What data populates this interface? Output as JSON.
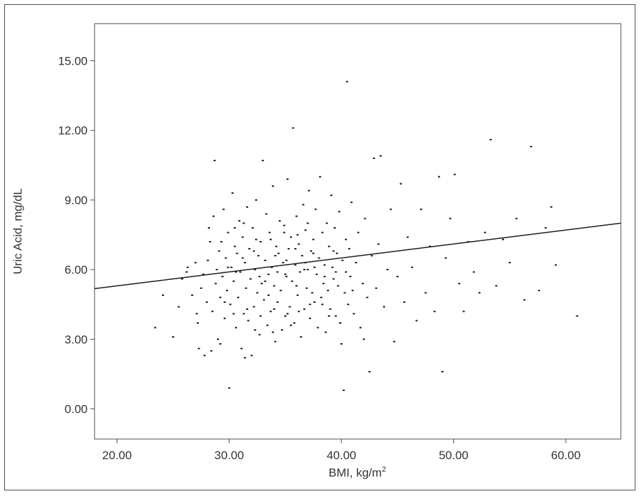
{
  "chart_data": {
    "type": "scatter",
    "title": "",
    "xlabel": "BMI, kg/m",
    "xlabel_superscript": "2",
    "ylabel": "Uric Acid, mg/dL",
    "xlim": [
      18.0,
      64.9
    ],
    "ylim": [
      -1.3,
      16.6
    ],
    "x_ticks": [
      "20.00",
      "30.00",
      "40.00",
      "50.00",
      "60.00"
    ],
    "x_tick_values": [
      20,
      30,
      40,
      50,
      60
    ],
    "y_ticks": [
      "0.00",
      "3.00",
      "6.00",
      "9.00",
      "12.00",
      "15.00"
    ],
    "y_tick_values": [
      0,
      3,
      6,
      9,
      12,
      15
    ],
    "grid": false,
    "legend": "none",
    "point_color": "#1a1a1a",
    "line_color": "#1a1a1a",
    "fit_line": {
      "x": [
        18.0,
        64.9
      ],
      "y": [
        5.18,
        8.0
      ]
    },
    "series": [
      {
        "points": [
          [
            24.1,
            4.9
          ],
          [
            25.5,
            4.4
          ],
          [
            25.8,
            5.6
          ],
          [
            26.2,
            5.9
          ],
          [
            26.7,
            4.9
          ],
          [
            27.0,
            6.3
          ],
          [
            27.2,
            3.7
          ],
          [
            27.3,
            2.6
          ],
          [
            27.5,
            5.2
          ],
          [
            27.7,
            5.8
          ],
          [
            27.8,
            2.3
          ],
          [
            28.0,
            4.6
          ],
          [
            28.1,
            6.4
          ],
          [
            28.2,
            7.8
          ],
          [
            28.4,
            2.5
          ],
          [
            28.5,
            4.2
          ],
          [
            28.6,
            8.3
          ],
          [
            28.7,
            10.7
          ],
          [
            28.8,
            5.4
          ],
          [
            28.9,
            6.0
          ],
          [
            29.0,
            3.0
          ],
          [
            29.1,
            6.8
          ],
          [
            29.2,
            4.8
          ],
          [
            29.3,
            7.2
          ],
          [
            29.4,
            5.7
          ],
          [
            29.5,
            8.6
          ],
          [
            29.6,
            3.9
          ],
          [
            29.7,
            6.5
          ],
          [
            29.8,
            5.1
          ],
          [
            29.9,
            7.6
          ],
          [
            30.0,
            0.9
          ],
          [
            30.1,
            4.5
          ],
          [
            30.2,
            6.1
          ],
          [
            30.3,
            9.3
          ],
          [
            30.4,
            5.5
          ],
          [
            30.5,
            7.0
          ],
          [
            30.6,
            3.5
          ],
          [
            30.7,
            6.7
          ],
          [
            30.8,
            4.8
          ],
          [
            30.9,
            8.1
          ],
          [
            31.0,
            5.9
          ],
          [
            31.1,
            2.6
          ],
          [
            31.2,
            7.4
          ],
          [
            31.3,
            4.1
          ],
          [
            31.4,
            6.3
          ],
          [
            31.5,
            5.2
          ],
          [
            31.6,
            8.7
          ],
          [
            31.7,
            3.8
          ],
          [
            31.8,
            6.9
          ],
          [
            31.9,
            5.6
          ],
          [
            32.0,
            2.3
          ],
          [
            32.1,
            7.8
          ],
          [
            32.2,
            4.4
          ],
          [
            32.3,
            6.0
          ],
          [
            32.4,
            9.0
          ],
          [
            32.5,
            5.0
          ],
          [
            32.6,
            6.6
          ],
          [
            32.7,
            3.2
          ],
          [
            32.8,
            7.2
          ],
          [
            32.9,
            5.4
          ],
          [
            33.0,
            10.7
          ],
          [
            33.1,
            4.7
          ],
          [
            33.2,
            6.4
          ],
          [
            33.3,
            8.4
          ],
          [
            33.4,
            3.6
          ],
          [
            33.5,
            5.8
          ],
          [
            33.6,
            7.6
          ],
          [
            33.7,
            4.2
          ],
          [
            33.8,
            6.1
          ],
          [
            33.9,
            9.6
          ],
          [
            34.0,
            5.3
          ],
          [
            34.1,
            2.9
          ],
          [
            34.2,
            7.0
          ],
          [
            34.3,
            4.6
          ],
          [
            34.4,
            6.7
          ],
          [
            34.5,
            8.1
          ],
          [
            34.6,
            5.1
          ],
          [
            34.7,
            3.4
          ],
          [
            34.8,
            6.3
          ],
          [
            34.9,
            7.9
          ],
          [
            35.0,
            4.0
          ],
          [
            35.1,
            5.7
          ],
          [
            35.2,
            9.9
          ],
          [
            35.3,
            6.9
          ],
          [
            35.4,
            4.4
          ],
          [
            35.5,
            7.4
          ],
          [
            35.6,
            5.5
          ],
          [
            35.7,
            12.1
          ],
          [
            35.8,
            3.7
          ],
          [
            35.9,
            6.2
          ],
          [
            36.0,
            8.3
          ],
          [
            36.1,
            4.9
          ],
          [
            36.2,
            7.1
          ],
          [
            36.3,
            5.9
          ],
          [
            36.4,
            3.1
          ],
          [
            36.5,
            6.6
          ],
          [
            36.6,
            8.8
          ],
          [
            36.7,
            4.3
          ],
          [
            36.8,
            7.7
          ],
          [
            36.9,
            5.2
          ],
          [
            37.0,
            6.0
          ],
          [
            37.1,
            9.4
          ],
          [
            37.2,
            3.9
          ],
          [
            37.3,
            6.8
          ],
          [
            37.4,
            5.0
          ],
          [
            37.5,
            7.3
          ],
          [
            37.6,
            4.6
          ],
          [
            37.7,
            8.6
          ],
          [
            37.8,
            5.8
          ],
          [
            37.9,
            3.5
          ],
          [
            38.0,
            6.5
          ],
          [
            38.1,
            10.0
          ],
          [
            38.2,
            4.8
          ],
          [
            38.3,
            7.6
          ],
          [
            38.4,
            5.4
          ],
          [
            38.5,
            6.2
          ],
          [
            38.6,
            3.3
          ],
          [
            38.7,
            8.0
          ],
          [
            38.8,
            5.1
          ],
          [
            38.9,
            7.0
          ],
          [
            39.0,
            4.3
          ],
          [
            39.1,
            9.2
          ],
          [
            39.2,
            6.1
          ],
          [
            39.3,
            5.6
          ],
          [
            39.4,
            7.8
          ],
          [
            39.5,
            4.0
          ],
          [
            39.6,
            6.7
          ],
          [
            39.7,
            5.3
          ],
          [
            39.8,
            8.5
          ],
          [
            39.9,
            3.7
          ],
          [
            40.0,
            2.8
          ],
          [
            40.1,
            6.4
          ],
          [
            40.2,
            0.8
          ],
          [
            40.3,
            5.0
          ],
          [
            40.4,
            7.3
          ],
          [
            40.5,
            14.1
          ],
          [
            40.6,
            4.5
          ],
          [
            40.7,
            6.9
          ],
          [
            40.8,
            5.7
          ],
          [
            40.9,
            8.9
          ],
          [
            41.1,
            4.1
          ],
          [
            41.3,
            6.3
          ],
          [
            41.5,
            7.6
          ],
          [
            41.7,
            3.5
          ],
          [
            41.9,
            5.4
          ],
          [
            42.1,
            8.2
          ],
          [
            42.3,
            4.8
          ],
          [
            42.5,
            1.6
          ],
          [
            42.7,
            6.6
          ],
          [
            42.9,
            10.8
          ],
          [
            43.1,
            5.2
          ],
          [
            43.3,
            7.1
          ],
          [
            43.5,
            10.9
          ],
          [
            43.8,
            4.4
          ],
          [
            44.1,
            6.0
          ],
          [
            44.4,
            8.6
          ],
          [
            44.7,
            2.9
          ],
          [
            45.0,
            5.7
          ],
          [
            45.3,
            9.7
          ],
          [
            45.6,
            4.6
          ],
          [
            45.9,
            7.4
          ],
          [
            46.3,
            6.1
          ],
          [
            46.7,
            3.8
          ],
          [
            47.1,
            8.6
          ],
          [
            47.5,
            5.0
          ],
          [
            47.9,
            7.0
          ],
          [
            48.3,
            4.2
          ],
          [
            48.7,
            10.0
          ],
          [
            49.0,
            1.6
          ],
          [
            49.3,
            6.5
          ],
          [
            49.7,
            8.2
          ],
          [
            50.1,
            10.1
          ],
          [
            50.5,
            5.4
          ],
          [
            50.9,
            4.2
          ],
          [
            51.3,
            7.2
          ],
          [
            51.8,
            5.9
          ],
          [
            52.3,
            5.0
          ],
          [
            52.8,
            7.6
          ],
          [
            53.3,
            11.6
          ],
          [
            53.8,
            5.3
          ],
          [
            54.4,
            7.3
          ],
          [
            55.0,
            6.3
          ],
          [
            55.6,
            8.2
          ],
          [
            56.3,
            4.7
          ],
          [
            56.9,
            11.3
          ],
          [
            57.6,
            5.1
          ],
          [
            58.2,
            7.8
          ],
          [
            58.7,
            8.7
          ],
          [
            59.1,
            6.2
          ],
          [
            61.0,
            4.0
          ],
          [
            23.4,
            3.5
          ],
          [
            25.0,
            3.1
          ],
          [
            26.3,
            6.1
          ],
          [
            27.1,
            4.1
          ],
          [
            28.3,
            7.2
          ],
          [
            29.2,
            2.8
          ],
          [
            30.6,
            5.9
          ],
          [
            31.4,
            2.2
          ],
          [
            32.7,
            5.7
          ],
          [
            33.5,
            4.9
          ],
          [
            34.3,
            5.9
          ],
          [
            35.1,
            6.4
          ],
          [
            36.0,
            5.3
          ],
          [
            36.8,
            6.3
          ],
          [
            37.6,
            6.1
          ],
          [
            38.3,
            4.5
          ],
          [
            39.3,
            6.8
          ],
          [
            40.4,
            5.9
          ],
          [
            41.0,
            5.1
          ],
          [
            42.0,
            3.0
          ],
          [
            31.2,
            6.5
          ],
          [
            32.2,
            6.8
          ],
          [
            33.2,
            5.5
          ],
          [
            34.1,
            6.6
          ],
          [
            35.0,
            5.8
          ],
          [
            35.9,
            6.9
          ],
          [
            36.7,
            6.0
          ],
          [
            37.5,
            6.7
          ],
          [
            38.5,
            5.7
          ],
          [
            39.5,
            5.9
          ],
          [
            30.4,
            4.1
          ],
          [
            31.6,
            4.3
          ],
          [
            32.8,
            4.0
          ],
          [
            34.0,
            4.3
          ],
          [
            35.2,
            4.1
          ],
          [
            36.2,
            4.2
          ],
          [
            37.2,
            4.5
          ],
          [
            33.7,
            7.3
          ],
          [
            34.9,
            7.6
          ],
          [
            36.1,
            7.5
          ],
          [
            37.0,
            8.0
          ],
          [
            32.4,
            7.3
          ],
          [
            31.3,
            8.0
          ],
          [
            30.5,
            7.8
          ],
          [
            29.9,
            6.1
          ],
          [
            29.6,
            4.6
          ],
          [
            35.5,
            3.6
          ],
          [
            33.9,
            3.3
          ],
          [
            32.3,
            3.4
          ],
          [
            38.9,
            4.0
          ]
        ]
      }
    ]
  }
}
